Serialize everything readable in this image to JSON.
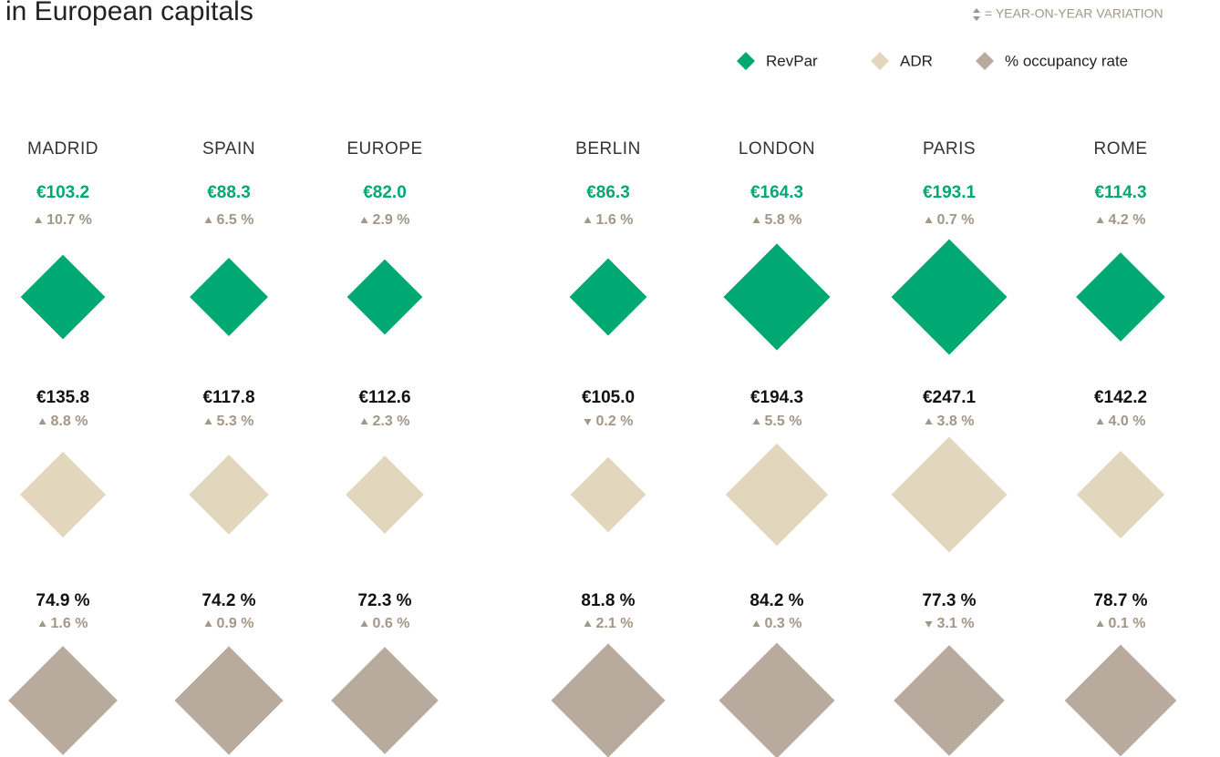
{
  "chart_data": {
    "type": "diamond",
    "title": "in European capitals",
    "variation_note": "= YEAR-ON-YEAR VARIATION",
    "categories": [
      "MADRID",
      "SPAIN",
      "EUROPE",
      "BERLIN",
      "LONDON",
      "PARIS",
      "ROME"
    ],
    "series": [
      {
        "name": "RevPar",
        "color": "#00a872",
        "label_color": "#00a872",
        "values": [
          103.2,
          88.3,
          82.0,
          86.3,
          164.3,
          193.1,
          114.3
        ],
        "value_labels": [
          "€103.2",
          "€88.3",
          "€82.0",
          "€86.3",
          "€164.3",
          "€193.1",
          "€114.3"
        ],
        "changes": [
          10.7,
          6.5,
          2.9,
          1.6,
          5.8,
          0.7,
          4.2
        ],
        "change_labels": [
          "10.7 %",
          "6.5 %",
          "2.9 %",
          "1.6 %",
          "5.8 %",
          "0.7 %",
          "4.2 %"
        ]
      },
      {
        "name": "ADR",
        "color": "#e2d7bd",
        "label_color": "#111111",
        "values": [
          135.8,
          117.8,
          112.6,
          105.0,
          194.3,
          247.1,
          142.2
        ],
        "value_labels": [
          "€135.8",
          "€117.8",
          "€112.6",
          "€105.0",
          "€194.3",
          "€247.1",
          "€142.2"
        ],
        "changes": [
          8.8,
          5.3,
          2.3,
          -0.2,
          5.5,
          3.8,
          4.0
        ],
        "change_labels": [
          "8.8 %",
          "5.3 %",
          "2.3 %",
          "0.2 %",
          "5.5 %",
          "3.8 %",
          "4.0 %"
        ]
      },
      {
        "name": "% occupancy rate",
        "color": "#b8ab9d",
        "label_color": "#111111",
        "values": [
          74.9,
          74.2,
          72.3,
          81.8,
          84.2,
          77.3,
          78.7
        ],
        "value_labels": [
          "74.9 %",
          "74.2 %",
          "72.3 %",
          "81.8 %",
          "84.2 %",
          "77.3 %",
          "78.7 %"
        ],
        "changes": [
          1.6,
          0.9,
          0.6,
          2.1,
          0.3,
          -3.1,
          0.1
        ],
        "change_labels": [
          "1.6 %",
          "0.9 %",
          "0.6 %",
          "2.1 %",
          "0.3 %",
          "3.1 %",
          "0.1 %"
        ]
      }
    ]
  }
}
